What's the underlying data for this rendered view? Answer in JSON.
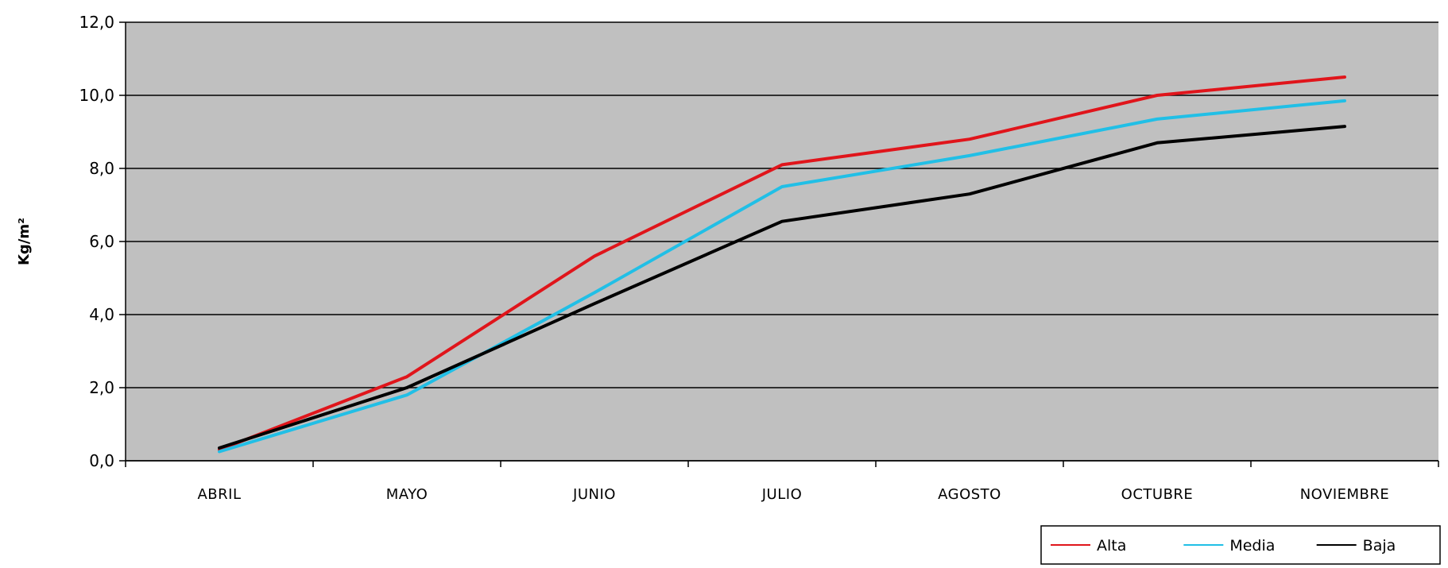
{
  "chart_data": {
    "type": "line",
    "title": "",
    "xlabel": "",
    "ylabel": "Kg/m²",
    "categories": [
      "ABRIL",
      "MAYO",
      "JUNIO",
      "JULIO",
      "AGOSTO",
      "OCTUBRE",
      "NOVIEMBRE"
    ],
    "ylim": [
      0,
      12
    ],
    "yticks": [
      "0,0",
      "2,0",
      "4,0",
      "6,0",
      "8,0",
      "10,0",
      "12,0"
    ],
    "grid": true,
    "legend_position": "bottom-right",
    "series": [
      {
        "name": "Alta",
        "color": "#e0151b",
        "values": [
          0.3,
          2.3,
          5.6,
          8.1,
          8.8,
          10.0,
          10.5
        ]
      },
      {
        "name": "Media",
        "color": "#21bfe6",
        "values": [
          0.25,
          1.8,
          4.6,
          7.5,
          8.35,
          9.35,
          9.85
        ]
      },
      {
        "name": "Baja",
        "color": "#000000",
        "values": [
          0.35,
          2.0,
          4.3,
          6.55,
          7.3,
          8.7,
          9.15
        ]
      }
    ],
    "plot_background": "#c0c0c0"
  }
}
